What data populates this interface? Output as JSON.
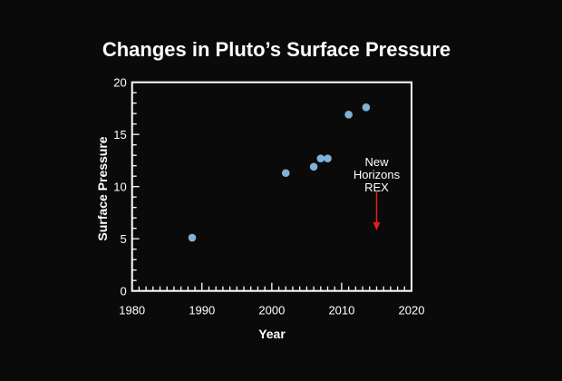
{
  "chart_data": {
    "type": "scatter",
    "title": "Changes in Pluto’s Surface Pressure",
    "xlabel": "Year",
    "ylabel": "Surface Pressure",
    "xlim": [
      1980,
      2020
    ],
    "ylim": [
      0,
      20
    ],
    "xticks": [
      1980,
      1990,
      2000,
      2010,
      2020
    ],
    "yticks": [
      0,
      5,
      10,
      15,
      20
    ],
    "grid": false,
    "points": [
      {
        "x": 1988.6,
        "y": 5.1
      },
      {
        "x": 2002,
        "y": 11.3
      },
      {
        "x": 2006,
        "y": 11.9
      },
      {
        "x": 2007,
        "y": 12.7
      },
      {
        "x": 2008,
        "y": 12.7
      },
      {
        "x": 2011,
        "y": 16.9
      },
      {
        "x": 2013.5,
        "y": 17.6
      }
    ],
    "point_color": "#7fb2d6",
    "annotation": {
      "lines": [
        "New",
        "Horizons",
        "REX"
      ],
      "arrow_x": 2015,
      "arrow_from_y": 9.6,
      "arrow_to_y": 5.8,
      "arrow_color": "#e0201c"
    }
  }
}
